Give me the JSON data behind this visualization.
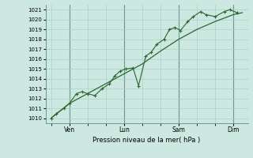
{
  "bg_color": "#cce8e0",
  "grid_color": "#aad0c8",
  "line_color": "#2d6630",
  "ylabel": "Pression niveau de la mer( hPa )",
  "ylim": [
    1009.5,
    1021.5
  ],
  "yticks": [
    1010,
    1011,
    1012,
    1013,
    1014,
    1015,
    1016,
    1017,
    1018,
    1019,
    1020,
    1021
  ],
  "xtick_labels": [
    "Ven",
    "Lun",
    "Sam",
    "Dim"
  ],
  "xtick_positions": [
    1,
    4,
    7,
    10
  ],
  "vlines": [
    1,
    4,
    7,
    10
  ],
  "series1_x": [
    0.0,
    0.3,
    0.7,
    1.0,
    1.4,
    1.7,
    2.0,
    2.4,
    2.8,
    3.2,
    3.5,
    3.8,
    4.1,
    4.5,
    4.8,
    5.2,
    5.5,
    5.8,
    6.2,
    6.5,
    6.8,
    7.1,
    7.5,
    7.8,
    8.2,
    8.5,
    9.0,
    9.5,
    9.8,
    10.2
  ],
  "series1_y": [
    1010.0,
    1010.5,
    1011.0,
    1011.5,
    1012.5,
    1012.7,
    1012.5,
    1012.3,
    1013.0,
    1013.5,
    1014.3,
    1014.8,
    1015.0,
    1015.1,
    1013.3,
    1016.3,
    1016.7,
    1017.5,
    1018.0,
    1019.0,
    1019.2,
    1018.9,
    1019.8,
    1020.3,
    1020.8,
    1020.5,
    1020.3,
    1020.8,
    1021.0,
    1020.7
  ],
  "series2_x": [
    0.0,
    1.0,
    2.0,
    3.0,
    4.0,
    5.0,
    6.0,
    7.0,
    8.0,
    9.0,
    10.0,
    10.5
  ],
  "series2_y": [
    1010.0,
    1011.5,
    1012.5,
    1013.5,
    1014.5,
    1015.5,
    1016.8,
    1018.0,
    1019.0,
    1019.8,
    1020.5,
    1020.7
  ]
}
